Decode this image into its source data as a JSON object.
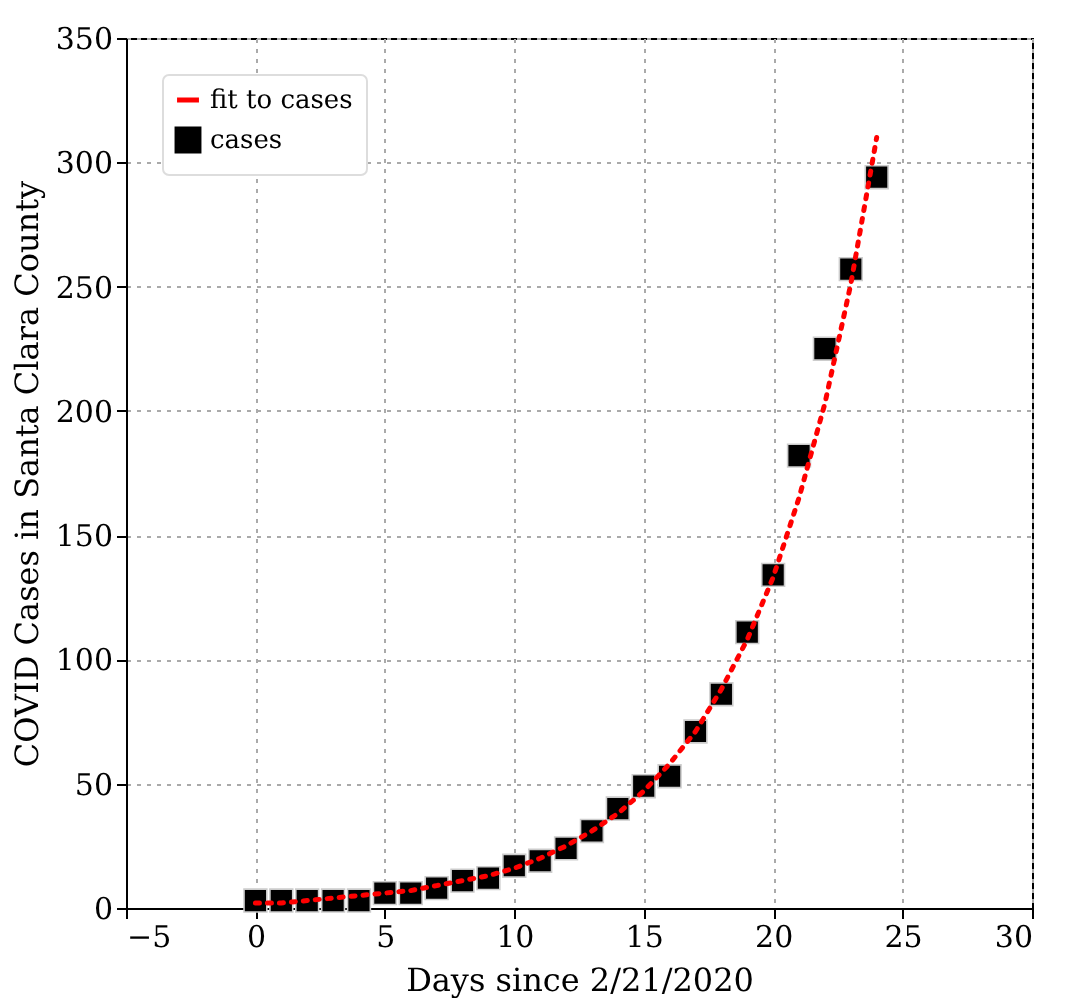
{
  "chart_data": {
    "type": "scatter",
    "xlabel": "Days since 2/21/2020",
    "ylabel": "COVID Cases in Santa Clara County",
    "xlim": [
      -5,
      30
    ],
    "xticks": [
      -5,
      0,
      5,
      10,
      15,
      20,
      25,
      30
    ],
    "ylim": [
      0,
      350
    ],
    "yticks": [
      0,
      50,
      100,
      150,
      200,
      250,
      300,
      350
    ],
    "grid": true,
    "legend": "top left",
    "series": [
      {
        "name": "fit to cases",
        "type": "line",
        "line_style": "dotted",
        "color": "#ff0000",
        "x": [
          0,
          1,
          2,
          3,
          4,
          5,
          6,
          7,
          8,
          9,
          10,
          11,
          12,
          13,
          14,
          15,
          16,
          17,
          18,
          19,
          20,
          21,
          22,
          23,
          24
        ],
        "values": [
          2,
          2,
          3,
          4,
          5,
          6,
          7,
          9,
          11,
          13,
          16,
          20,
          25,
          31,
          38,
          47,
          58,
          71,
          88,
          108,
          133,
          165,
          203,
          251,
          310
        ]
      },
      {
        "name": "cases",
        "marker": "square",
        "color": "#000000",
        "x": [
          0,
          1,
          2,
          3,
          4,
          5,
          6,
          7,
          8,
          9,
          10,
          11,
          12,
          13,
          14,
          15,
          16,
          17,
          18,
          19,
          20,
          21,
          22,
          23,
          24
        ],
        "values": [
          3,
          3,
          3,
          3,
          3,
          6,
          6,
          8,
          11,
          12,
          17,
          19,
          24,
          31,
          40,
          49,
          53,
          71,
          86,
          111,
          134,
          182,
          225,
          257,
          294
        ]
      }
    ]
  }
}
